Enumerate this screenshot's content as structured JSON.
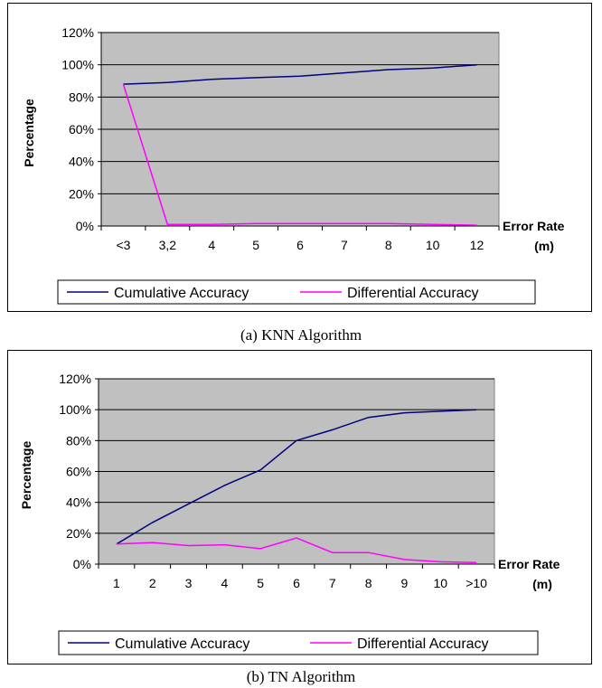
{
  "captions": {
    "a": "(a) KNN Algorithm",
    "b": "(b) TN Algorithm"
  },
  "chart_data": [
    {
      "type": "line",
      "categories": [
        "<3",
        "3,2",
        "4",
        "5",
        "6",
        "7",
        "8",
        "10",
        "12"
      ],
      "series": [
        {
          "name": "Cumulative Accuracy",
          "color": "#000080",
          "values": [
            88,
            89,
            91,
            92,
            93,
            95,
            97,
            98,
            100
          ]
        },
        {
          "name": "Differential Accuracy",
          "color": "#ff00ff",
          "values": [
            88,
            1,
            1,
            1.5,
            1.5,
            1.5,
            1.5,
            1,
            0.5
          ]
        }
      ],
      "xlabel": "Error Rate (m)",
      "xlabel_line1": "Error Rate",
      "xlabel_line2": "(m)",
      "ylabel": "Percentage",
      "ylim": [
        0,
        120
      ],
      "yticks": [
        "0%",
        "20%",
        "40%",
        "60%",
        "80%",
        "100%",
        "120%"
      ],
      "plot_background": "#c0c0c0",
      "grid": true,
      "legend_position": "bottom"
    },
    {
      "type": "line",
      "categories": [
        "1",
        "2",
        "3",
        "4",
        "5",
        "6",
        "7",
        "8",
        "9",
        "10",
        ">10"
      ],
      "series": [
        {
          "name": "Cumulative Accuracy",
          "color": "#000080",
          "values": [
            13,
            27,
            39,
            51,
            61,
            80,
            87,
            95,
            98,
            99,
            100
          ]
        },
        {
          "name": "Differential Accuracy",
          "color": "#ff00ff",
          "values": [
            13,
            14,
            12,
            12.5,
            10,
            17,
            7.5,
            7.5,
            3,
            1.5,
            1
          ]
        }
      ],
      "xlabel": "Error Rate (m)",
      "xlabel_line1": "Error Rate",
      "xlabel_line2": "(m)",
      "ylabel": "Percentage",
      "ylim": [
        0,
        120
      ],
      "yticks": [
        "0%",
        "20%",
        "40%",
        "60%",
        "80%",
        "100%",
        "120%"
      ],
      "plot_background": "#c0c0c0",
      "grid": true,
      "legend_position": "bottom"
    }
  ]
}
